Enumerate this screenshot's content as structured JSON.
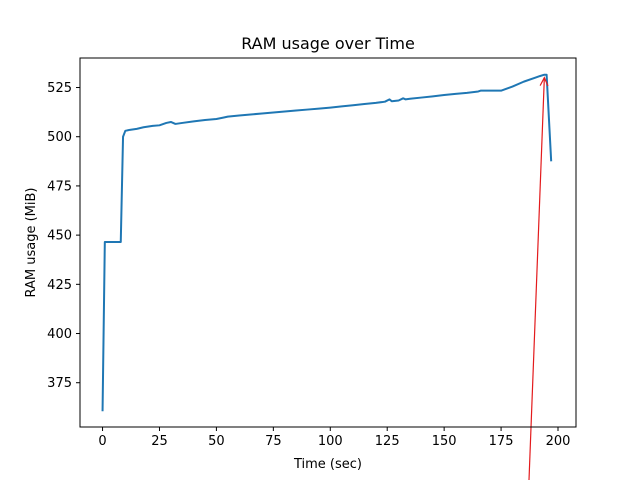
{
  "chart_data": {
    "type": "line",
    "title": "RAM usage over Time",
    "xlabel": "Time (sec)",
    "ylabel": "RAM usage (MiB)",
    "xlim": [
      -9.9,
      207.9
    ],
    "ylim": [
      352.5,
      540.0
    ],
    "xticks": [
      0,
      25,
      50,
      75,
      100,
      125,
      150,
      175,
      200
    ],
    "yticks": [
      375,
      400,
      425,
      450,
      475,
      500,
      525
    ],
    "grid": false,
    "legend": "none",
    "series": [
      {
        "color": "#1f77b4",
        "x": [
          0,
          1,
          2,
          4,
          6,
          8,
          9,
          10,
          12,
          15,
          18,
          22,
          25,
          28,
          30,
          32,
          35,
          40,
          45,
          50,
          53,
          55,
          60,
          65,
          70,
          75,
          80,
          85,
          90,
          95,
          100,
          105,
          110,
          115,
          120,
          124,
          126,
          127,
          130,
          132,
          133,
          135,
          140,
          145,
          150,
          155,
          160,
          165,
          166,
          170,
          175,
          180,
          185,
          190,
          192,
          194,
          195,
          197
        ],
        "values": [
          360.5,
          446.5,
          446.5,
          446.5,
          446.5,
          446.5,
          500.0,
          503.0,
          503.5,
          504.0,
          504.8,
          505.5,
          505.8,
          507.0,
          507.5,
          506.5,
          507.0,
          507.8,
          508.5,
          509.0,
          509.7,
          510.2,
          510.8,
          511.3,
          511.8,
          512.3,
          512.8,
          513.3,
          513.8,
          514.3,
          514.8,
          515.4,
          516.0,
          516.6,
          517.2,
          517.8,
          519.0,
          518.0,
          518.4,
          519.5,
          519.0,
          519.3,
          519.9,
          520.5,
          521.2,
          521.8,
          522.3,
          523.0,
          523.4,
          523.4,
          523.4,
          525.5,
          528.0,
          530.0,
          530.8,
          531.5,
          531.5,
          487.5
        ]
      }
    ],
    "annotations": [
      {
        "type": "arrow",
        "color": "#e31a1c",
        "from": [
          187,
          340
        ],
        "to": [
          194,
          530
        ]
      }
    ]
  }
}
